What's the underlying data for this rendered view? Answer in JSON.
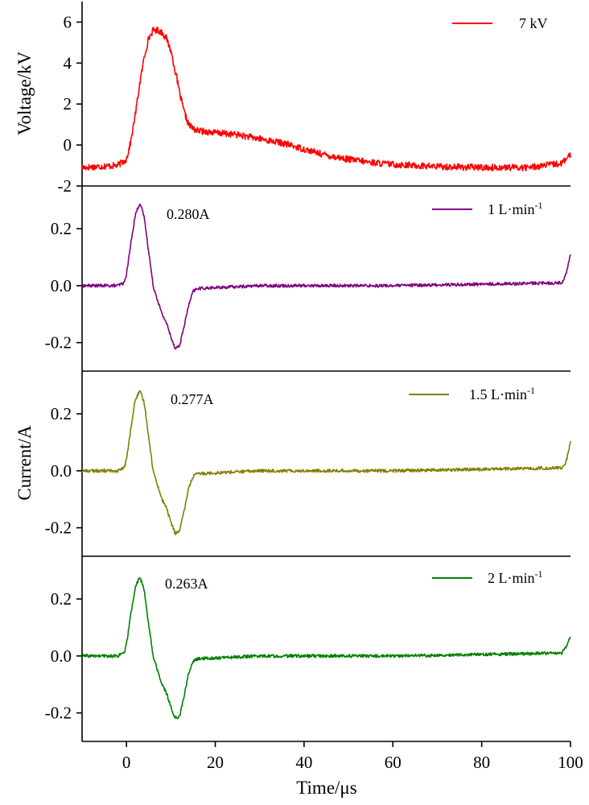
{
  "chart_data": {
    "type": "line",
    "x_axis": {
      "label": "Time/μs",
      "xlim": [
        -10,
        100
      ],
      "ticks": [
        0,
        20,
        40,
        60,
        80,
        100
      ],
      "tick_labels": [
        "0",
        "20",
        "40",
        "60",
        "80",
        "100"
      ]
    },
    "panels": [
      {
        "id": "voltage",
        "ylabel": "Voltage/kV",
        "ylim": [
          -2,
          7
        ],
        "ticks": [
          -2,
          0,
          2,
          4,
          6
        ],
        "tick_labels": [
          "-2",
          "0",
          "2",
          "4",
          "6"
        ],
        "series": {
          "name": "7 kV",
          "color": "#ff0000",
          "x": [
            -10,
            -2,
            0,
            1,
            2,
            3,
            4,
            5,
            6,
            7,
            8,
            9,
            10,
            11,
            12,
            13,
            14,
            15,
            16,
            20,
            25,
            30,
            35,
            40,
            45,
            50,
            55,
            60,
            70,
            80,
            90,
            98,
            100
          ],
          "y": [
            -1.1,
            -1.0,
            -0.7,
            0.2,
            1.5,
            3.0,
            4.3,
            5.2,
            5.6,
            5.6,
            5.5,
            5.2,
            4.6,
            3.6,
            2.5,
            1.6,
            1.0,
            0.8,
            0.7,
            0.6,
            0.5,
            0.3,
            0.1,
            -0.2,
            -0.5,
            -0.7,
            -0.85,
            -0.95,
            -1.05,
            -1.1,
            -1.1,
            -0.9,
            -0.5
          ]
        }
      },
      {
        "id": "current-1",
        "ylim": [
          -0.3,
          0.35
        ],
        "ticks": [
          -0.2,
          0.0,
          0.2
        ],
        "tick_labels": [
          "-0.2",
          "0.0",
          "0.2"
        ],
        "annotation": "0.280A",
        "series": {
          "name": "1 L·min-1",
          "color": "#800080",
          "x": [
            -10,
            -2,
            -0.5,
            0,
            1,
            2,
            3,
            4,
            5,
            6,
            7,
            8,
            9,
            10,
            11,
            12,
            13,
            14,
            15,
            16,
            30,
            60,
            98,
            99,
            100
          ],
          "y": [
            0.0,
            0.0,
            0.01,
            0.04,
            0.15,
            0.25,
            0.29,
            0.24,
            0.12,
            0.0,
            -0.05,
            -0.1,
            -0.13,
            -0.18,
            -0.22,
            -0.21,
            -0.14,
            -0.07,
            -0.02,
            -0.01,
            0.0,
            0.0,
            0.01,
            0.04,
            0.11
          ]
        }
      },
      {
        "id": "current-2",
        "ylabel": "Current/A",
        "ylim": [
          -0.3,
          0.35
        ],
        "ticks": [
          -0.2,
          0.0,
          0.2
        ],
        "tick_labels": [
          "-0.2",
          "0.0",
          "0.2"
        ],
        "annotation": "0.277A",
        "series": {
          "name": "1.5 L·min-1",
          "color": "#808000",
          "x": [
            -10,
            -2,
            -0.5,
            0,
            1,
            2,
            3,
            4,
            5,
            6,
            7,
            8,
            9,
            10,
            11,
            12,
            13,
            14,
            15,
            16,
            30,
            60,
            98,
            99,
            100
          ],
          "y": [
            0.0,
            0.0,
            0.01,
            0.04,
            0.15,
            0.25,
            0.28,
            0.24,
            0.12,
            0.0,
            -0.05,
            -0.1,
            -0.13,
            -0.18,
            -0.22,
            -0.21,
            -0.14,
            -0.06,
            -0.02,
            -0.01,
            0.0,
            0.0,
            0.01,
            0.03,
            0.1
          ]
        }
      },
      {
        "id": "current-3",
        "ylim": [
          -0.3,
          0.35
        ],
        "ticks": [
          -0.2,
          0.0,
          0.2
        ],
        "tick_labels": [
          "-0.2",
          "0.0",
          "0.2"
        ],
        "annotation": "0.263A",
        "series": {
          "name": "2 L·min-1",
          "color": "#008000",
          "x": [
            -10,
            -2,
            -0.5,
            0,
            1,
            2,
            3,
            4,
            5,
            6,
            7,
            8,
            9,
            10,
            11,
            12,
            13,
            14,
            15,
            16,
            30,
            60,
            98,
            99,
            100
          ],
          "y": [
            0.0,
            0.0,
            0.01,
            0.04,
            0.15,
            0.24,
            0.28,
            0.23,
            0.11,
            0.0,
            -0.05,
            -0.1,
            -0.13,
            -0.18,
            -0.22,
            -0.21,
            -0.14,
            -0.06,
            -0.02,
            -0.01,
            0.0,
            0.0,
            0.01,
            0.03,
            0.07
          ]
        }
      }
    ]
  }
}
